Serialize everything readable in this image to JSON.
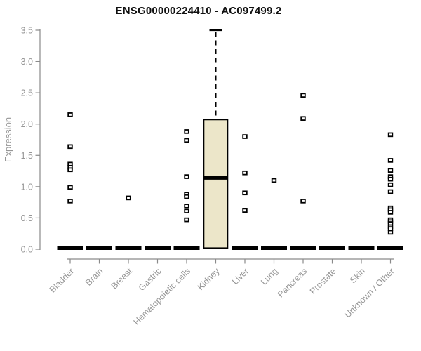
{
  "title": "ENSG00000224410 - AC097499.2",
  "colors": {
    "box_fill": "#ece6c9",
    "mark_black": "#000000",
    "axis_gray": "#8a8a8a",
    "label_gray": "#969696",
    "title_color": "#111111",
    "background": "#ffffff"
  },
  "chart_data": {
    "type": "boxplot",
    "title": "ENSG00000224410 - AC097499.2",
    "xlabel": "",
    "ylabel": "Expression",
    "ylim": [
      0.0,
      3.5
    ],
    "y_tick_labels": [
      "0.0",
      "0.5",
      "1.0",
      "1.5",
      "2.0",
      "2.5",
      "3.0",
      "3.5"
    ],
    "grid": false,
    "legend": "none",
    "categories": [
      "Bladder",
      "Brain",
      "Breast",
      "Gastric",
      "Hematopoietic cells",
      "Kidney",
      "Liver",
      "Lung",
      "Pancreas",
      "Prostate",
      "Skin",
      "Unknown / Other"
    ],
    "groups": [
      {
        "label": "Bladder",
        "zero_bar": true,
        "box": null,
        "points": [
          2.15,
          1.64,
          1.36,
          1.31,
          1.27,
          0.99,
          0.77
        ]
      },
      {
        "label": "Brain",
        "zero_bar": true,
        "box": null,
        "points": []
      },
      {
        "label": "Breast",
        "zero_bar": true,
        "box": null,
        "points": [
          0.82
        ]
      },
      {
        "label": "Gastric",
        "zero_bar": true,
        "box": null,
        "points": []
      },
      {
        "label": "Hematopoietic cells",
        "zero_bar": true,
        "box": null,
        "points": [
          1.88,
          1.74,
          1.16,
          0.88,
          0.84,
          0.69,
          0.61,
          0.47
        ]
      },
      {
        "label": "Kidney",
        "zero_bar": false,
        "box": {
          "lower": 0.0,
          "q1": 0.02,
          "median": 1.14,
          "q3": 2.07,
          "upper_whisker": 3.5
        },
        "points": []
      },
      {
        "label": "Liver",
        "zero_bar": true,
        "box": null,
        "points": [
          1.8,
          1.22,
          0.9,
          0.62
        ]
      },
      {
        "label": "Lung",
        "zero_bar": true,
        "box": null,
        "points": [
          1.1
        ]
      },
      {
        "label": "Pancreas",
        "zero_bar": true,
        "box": null,
        "points": [
          2.46,
          2.09,
          0.77
        ]
      },
      {
        "label": "Prostate",
        "zero_bar": true,
        "box": null,
        "points": []
      },
      {
        "label": "Skin",
        "zero_bar": true,
        "box": null,
        "points": []
      },
      {
        "label": "Unknown / Other",
        "zero_bar": true,
        "box": null,
        "points": [
          1.83,
          1.42,
          1.26,
          1.16,
          1.12,
          1.03,
          0.92,
          0.66,
          0.63,
          0.59,
          0.47,
          0.44,
          0.41,
          0.36,
          0.33,
          0.27
        ]
      }
    ]
  }
}
